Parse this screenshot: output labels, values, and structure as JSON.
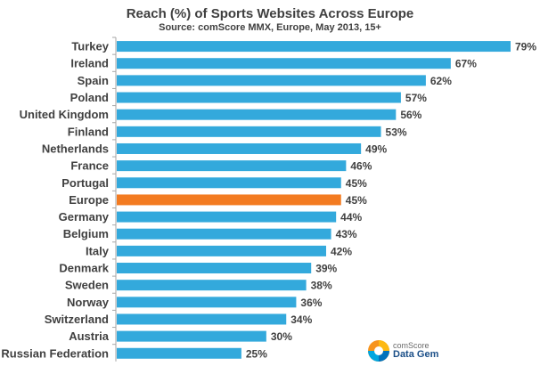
{
  "chart_data": {
    "type": "bar",
    "orientation": "horizontal",
    "title": "Reach (%) of Sports Websites Across  Europe",
    "subtitle": "Source: comScore MMX, Europe, May 2013, 15+",
    "categories": [
      "Turkey",
      "Ireland",
      "Spain",
      "Poland",
      "United Kingdom",
      "Finland",
      "Netherlands",
      "France",
      "Portugal",
      "Europe",
      "Germany",
      "Belgium",
      "Italy",
      "Denmark",
      "Sweden",
      "Norway",
      "Switzerland",
      "Austria",
      "Russian Federation"
    ],
    "values": [
      79,
      67,
      62,
      57,
      56,
      53,
      49,
      46,
      45,
      45,
      44,
      43,
      42,
      39,
      38,
      36,
      34,
      30,
      25
    ],
    "value_suffix": "%",
    "highlight_category": "Europe",
    "xlim": [
      0,
      79
    ],
    "grid": false,
    "colors": {
      "bar": "#33A9DC",
      "highlight": "#F37B21",
      "axis": "#a6a6a6"
    }
  },
  "logo": {
    "name": "comScore",
    "product": "Data Gem",
    "icon": "comscore-logo-icon"
  }
}
